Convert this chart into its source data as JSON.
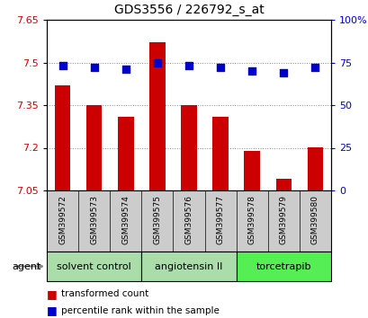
{
  "title": "GDS3556 / 226792_s_at",
  "samples": [
    "GSM399572",
    "GSM399573",
    "GSM399574",
    "GSM399575",
    "GSM399576",
    "GSM399577",
    "GSM399578",
    "GSM399579",
    "GSM399580"
  ],
  "transformed_counts": [
    7.42,
    7.35,
    7.31,
    7.57,
    7.35,
    7.31,
    7.19,
    7.09,
    7.2
  ],
  "percentile_ranks": [
    73,
    72,
    71,
    75,
    73,
    72,
    70,
    69,
    72
  ],
  "ylim_left": [
    7.05,
    7.65
  ],
  "ylim_right": [
    0,
    100
  ],
  "yticks_left": [
    7.05,
    7.2,
    7.35,
    7.5,
    7.65
  ],
  "ytick_labels_left": [
    "7.05",
    "7.2",
    "7.35",
    "7.5",
    "7.65"
  ],
  "yticks_right": [
    0,
    25,
    50,
    75,
    100
  ],
  "ytick_labels_right": [
    "0",
    "25",
    "50",
    "75",
    "100%"
  ],
  "bar_color": "#cc0000",
  "dot_color": "#0000cc",
  "agent_label": "agent",
  "legend_bar_label": "transformed count",
  "legend_dot_label": "percentile rank within the sample",
  "grid_color": "#888888",
  "plot_bg": "#ffffff",
  "tick_label_color_left": "#cc0000",
  "tick_label_color_right": "#0000cc",
  "bar_width": 0.5,
  "dot_size": 40,
  "sample_bg": "#cccccc",
  "group_defs": [
    {
      "start": 0,
      "end": 2,
      "label": "solvent control",
      "color": "#aaddaa"
    },
    {
      "start": 3,
      "end": 5,
      "label": "angiotensin II",
      "color": "#aaddaa"
    },
    {
      "start": 6,
      "end": 8,
      "label": "torcetrapib",
      "color": "#55ee55"
    }
  ]
}
